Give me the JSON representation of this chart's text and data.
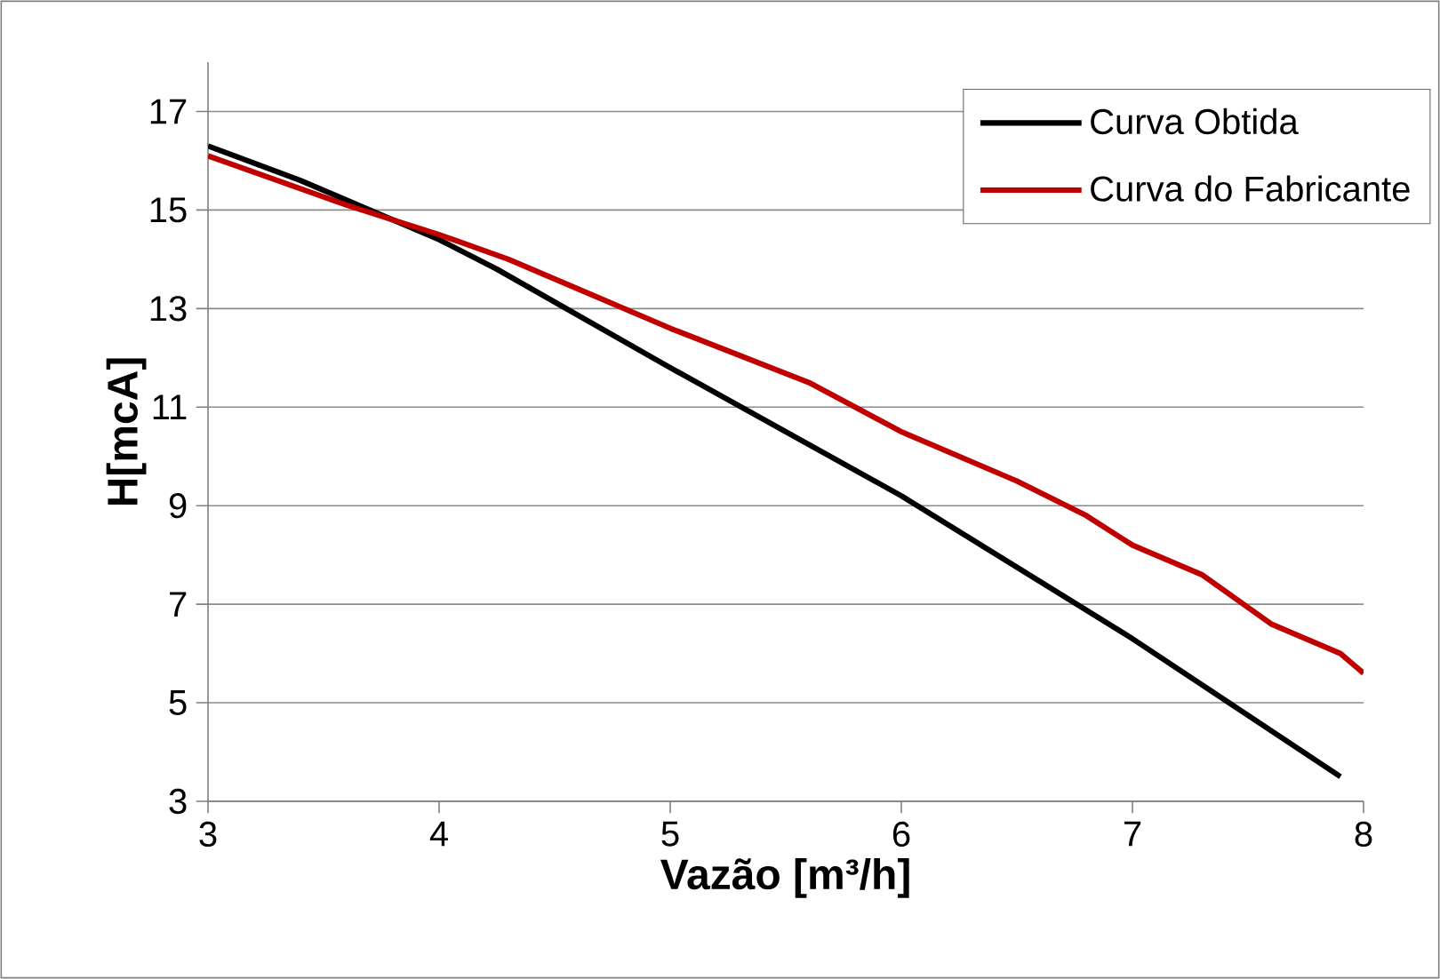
{
  "chart_data": {
    "type": "line",
    "xlabel": "Vazão [m³/h]",
    "ylabel": "H[mcA]",
    "xlim": [
      3,
      8
    ],
    "ylim": [
      3,
      18
    ],
    "xticks": [
      3,
      4,
      5,
      6,
      7,
      8
    ],
    "yticks": [
      3,
      5,
      7,
      9,
      11,
      13,
      15,
      17
    ],
    "grid": "y",
    "legend": "top right",
    "marker": "none",
    "line_style": "solid",
    "series": [
      {
        "name": "Curva Obtida",
        "color": "#000000",
        "x": [
          3,
          3.4,
          4,
          4.25,
          5,
          6,
          7,
          7.9
        ],
        "values": [
          16.3,
          15.6,
          14.4,
          13.8,
          11.8,
          9.2,
          6.3,
          3.5
        ]
      },
      {
        "name": "Curva do Fabricante",
        "color": "#c00000",
        "x": [
          3,
          3.6,
          4,
          4.3,
          4.6,
          5,
          5.6,
          6,
          6.5,
          6.8,
          7,
          7.3,
          7.6,
          7.9,
          8
        ],
        "values": [
          16.1,
          15.1,
          14.5,
          14.0,
          13.4,
          12.6,
          11.5,
          10.5,
          9.5,
          8.8,
          8.2,
          7.6,
          6.6,
          6.0,
          5.6
        ]
      }
    ]
  }
}
